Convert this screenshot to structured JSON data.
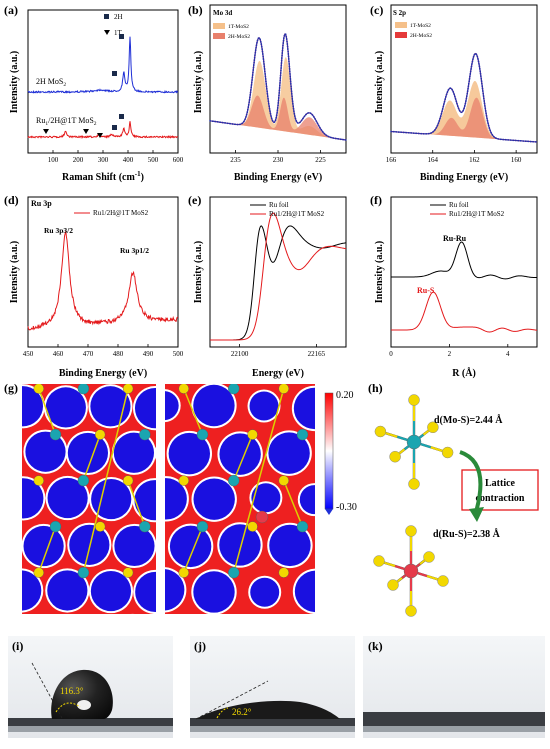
{
  "panels": {
    "a": {
      "label": "(a)",
      "ylabel": "Intensity (a.u.)",
      "xlabel": "Raman Shift (cm",
      "xlabel_sup": "-1",
      "xlabel_end": ")",
      "legend": {
        "sq": "2H",
        "tri": "1T"
      },
      "text_top": "2H  MoS",
      "text_top_sub": "2",
      "text_bottom": "Ru",
      "text_bottom_sub1": "1",
      "text_bottom_mid": "/2H@1T MoS",
      "text_bottom_sub2": "2",
      "ticks": [
        "100",
        "200",
        "300",
        "400",
        "500",
        "600"
      ]
    },
    "b": {
      "label": "(b)",
      "title": "Mo 3d",
      "ylabel": "Intensity (a.u.)",
      "xlabel": "Binding Energy (eV)",
      "legend": [
        "1T-MoS2",
        "2H-MoS2"
      ],
      "ticks": [
        "235",
        "230",
        "225"
      ]
    },
    "c": {
      "label": "(c)",
      "title": "S 2p",
      "ylabel": "Intensity (a.u.)",
      "xlabel": "Binding Energy (eV)",
      "legend": [
        "1T-MoS2",
        "2H-MoS2"
      ],
      "ticks": [
        "166",
        "164",
        "162",
        "160"
      ]
    },
    "d": {
      "label": "(d)",
      "title": "Ru 3p",
      "ylabel": "Intensity (a.u.)",
      "xlabel": "Binding Energy (eV)",
      "legend": "Ru1/2H@1T MoS2",
      "peak1": "Ru 3p3/2",
      "peak2": "Ru 3p1/2",
      "ticks": [
        "450",
        "460",
        "470",
        "480",
        "490",
        "500"
      ]
    },
    "e": {
      "label": "(e)",
      "ylabel": "Intensity (a.u.)",
      "xlabel": "Energy (eV)",
      "legend": [
        "Ru foil",
        "Ru1/2H@1T MoS2"
      ],
      "ticks": [
        "22100",
        "22165"
      ]
    },
    "f": {
      "label": "(f)",
      "ylabel": "Intensity (a.u.)",
      "xlabel": "R (Å)",
      "legend": [
        "Ru foil",
        "Ru1/2H@1T MoS2"
      ],
      "ann1": "Ru-Ru",
      "ann2": "Ru-S",
      "ticks": [
        "0",
        "2",
        "4"
      ]
    },
    "g": {
      "label": "(g)",
      "cb_top": "0.20",
      "cb_bottom": "-0.30"
    },
    "h": {
      "label": "(h)",
      "d1": "d(Mo-S)=2.44 Å",
      "d2": "d(Ru-S)=2.38 Å",
      "box1": "Lattice",
      "box2": "contraction"
    },
    "i": {
      "label": "(i)",
      "angle": "116.3°"
    },
    "j": {
      "label": "(j)",
      "angle": "26.2°"
    },
    "k": {
      "label": "(k)"
    }
  },
  "colors": {
    "blue": "#1f2fd6",
    "red": "#e41a1c",
    "black": "#000000",
    "purple": "#7b2a8a",
    "fill1T": "#f5c08a",
    "fill2H": "#e8806c",
    "mo": "#1aa5b0",
    "s": "#f2d800",
    "ru": "#e53a4a"
  },
  "chart_data": [
    {
      "type": "line",
      "panel": "a",
      "xlim": [
        0,
        600
      ],
      "series": [
        {
          "name": "2H  MoS2",
          "peaks": [
            383,
            408
          ]
        },
        {
          "name": "Ru1/2H@1T MoS2",
          "peaks": [
            150,
            283,
            335,
            383,
            408
          ]
        }
      ]
    },
    {
      "type": "line",
      "panel": "b",
      "xlim": [
        238,
        222
      ],
      "series": [
        {
          "name": "1T-MoS2"
        },
        {
          "name": "2H-MoS2"
        }
      ],
      "peaks": [
        232.3,
        229.2,
        226.4
      ]
    },
    {
      "type": "line",
      "panel": "c",
      "xlim": [
        166,
        159
      ],
      "series": [
        {
          "name": "1T-MoS2"
        },
        {
          "name": "2H-MoS2"
        }
      ],
      "peaks": [
        163.2,
        162.0
      ]
    },
    {
      "type": "line",
      "panel": "d",
      "xlim": [
        450,
        500
      ],
      "series": [
        {
          "name": "Ru1/2H@1T MoS2"
        }
      ],
      "peaks": [
        462.5,
        485.0
      ]
    },
    {
      "type": "line",
      "panel": "e",
      "xlim": [
        22075,
        22190
      ],
      "series": [
        {
          "name": "Ru foil"
        },
        {
          "name": "Ru1/2H@1T MoS2"
        }
      ]
    },
    {
      "type": "line",
      "panel": "f",
      "xlim": [
        0,
        5
      ],
      "series": [
        {
          "name": "Ru foil",
          "peak": 2.4
        },
        {
          "name": "Ru1/2H@1T MoS2",
          "peak": 1.45
        }
      ]
    }
  ]
}
